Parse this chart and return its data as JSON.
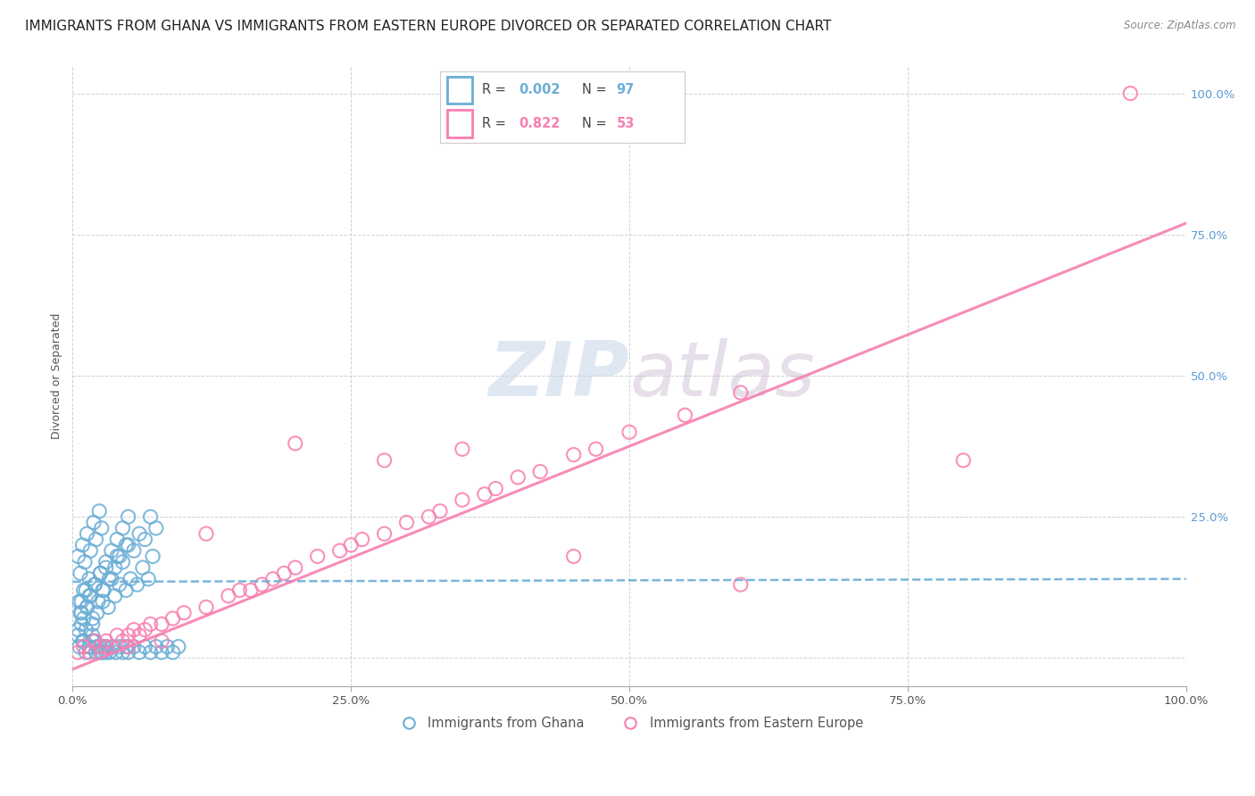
{
  "title": "IMMIGRANTS FROM GHANA VS IMMIGRANTS FROM EASTERN EUROPE DIVORCED OR SEPARATED CORRELATION CHART",
  "source": "Source: ZipAtlas.com",
  "ylabel": "Divorced or Separated",
  "legend_ghana_label": "Immigrants from Ghana",
  "legend_eastern_label": "Immigrants from Eastern Europe",
  "ghana_color": "#6baed6",
  "eastern_color": "#f87eb0",
  "watermark_zip": "ZIP",
  "watermark_atlas": "atlas",
  "xlim": [
    0.0,
    1.0
  ],
  "ylim": [
    -0.05,
    1.05
  ],
  "yticks": [
    0.0,
    0.25,
    0.5,
    0.75,
    1.0
  ],
  "xticks": [
    0.0,
    0.25,
    0.5,
    0.75,
    1.0
  ],
  "ghana_R": "0.002",
  "ghana_N": "97",
  "eastern_R": "0.822",
  "eastern_N": "53",
  "ghana_line_y0": 0.135,
  "ghana_line_y1": 0.14,
  "eastern_line_x0": 0.0,
  "eastern_line_y0": -0.02,
  "eastern_line_x1": 1.0,
  "eastern_line_y1": 0.77,
  "ghana_scatter_x": [
    0.005,
    0.007,
    0.008,
    0.01,
    0.012,
    0.013,
    0.015,
    0.016,
    0.018,
    0.02,
    0.022,
    0.025,
    0.027,
    0.028,
    0.03,
    0.032,
    0.035,
    0.038,
    0.04,
    0.042,
    0.045,
    0.048,
    0.05,
    0.052,
    0.055,
    0.058,
    0.06,
    0.063,
    0.065,
    0.068,
    0.07,
    0.072,
    0.075,
    0.005,
    0.008,
    0.01,
    0.012,
    0.015,
    0.018,
    0.02,
    0.022,
    0.025,
    0.028,
    0.03,
    0.005,
    0.007,
    0.009,
    0.011,
    0.013,
    0.016,
    0.019,
    0.021,
    0.024,
    0.026,
    0.006,
    0.008,
    0.01,
    0.013,
    0.015,
    0.018,
    0.02,
    0.023,
    0.025,
    0.027,
    0.03,
    0.033,
    0.035,
    0.038,
    0.04,
    0.042,
    0.045,
    0.048,
    0.05,
    0.006,
    0.009,
    0.012,
    0.015,
    0.018,
    0.021,
    0.024,
    0.027,
    0.03,
    0.033,
    0.036,
    0.039,
    0.042,
    0.045,
    0.048,
    0.05,
    0.055,
    0.06,
    0.065,
    0.07,
    0.075,
    0.08,
    0.085,
    0.09,
    0.095
  ],
  "ghana_scatter_y": [
    0.05,
    0.08,
    0.1,
    0.07,
    0.12,
    0.09,
    0.14,
    0.11,
    0.06,
    0.13,
    0.08,
    0.15,
    0.1,
    0.12,
    0.16,
    0.09,
    0.14,
    0.11,
    0.18,
    0.13,
    0.17,
    0.12,
    0.2,
    0.14,
    0.19,
    0.13,
    0.22,
    0.16,
    0.21,
    0.14,
    0.25,
    0.18,
    0.23,
    0.04,
    0.06,
    0.03,
    0.05,
    0.02,
    0.04,
    0.03,
    0.02,
    0.01,
    0.02,
    0.01,
    0.18,
    0.15,
    0.2,
    0.17,
    0.22,
    0.19,
    0.24,
    0.21,
    0.26,
    0.23,
    0.1,
    0.08,
    0.12,
    0.09,
    0.11,
    0.07,
    0.13,
    0.1,
    0.15,
    0.12,
    0.17,
    0.14,
    0.19,
    0.16,
    0.21,
    0.18,
    0.23,
    0.2,
    0.25,
    0.02,
    0.03,
    0.01,
    0.02,
    0.03,
    0.01,
    0.02,
    0.01,
    0.02,
    0.01,
    0.02,
    0.01,
    0.02,
    0.01,
    0.02,
    0.01,
    0.02,
    0.01,
    0.02,
    0.01,
    0.02,
    0.01,
    0.02,
    0.01,
    0.02
  ],
  "eastern_scatter_x": [
    0.005,
    0.01,
    0.015,
    0.02,
    0.025,
    0.03,
    0.04,
    0.045,
    0.05,
    0.055,
    0.06,
    0.065,
    0.07,
    0.08,
    0.09,
    0.1,
    0.12,
    0.14,
    0.15,
    0.16,
    0.17,
    0.18,
    0.19,
    0.2,
    0.22,
    0.24,
    0.25,
    0.26,
    0.28,
    0.3,
    0.32,
    0.33,
    0.35,
    0.37,
    0.38,
    0.4,
    0.42,
    0.45,
    0.47,
    0.5,
    0.55,
    0.6,
    0.95,
    0.03,
    0.05,
    0.08,
    0.12,
    0.2,
    0.28,
    0.35,
    0.45,
    0.6,
    0.8
  ],
  "eastern_scatter_y": [
    0.01,
    0.02,
    0.01,
    0.03,
    0.02,
    0.03,
    0.04,
    0.03,
    0.04,
    0.05,
    0.04,
    0.05,
    0.06,
    0.06,
    0.07,
    0.08,
    0.09,
    0.11,
    0.12,
    0.12,
    0.13,
    0.14,
    0.15,
    0.16,
    0.18,
    0.19,
    0.2,
    0.21,
    0.22,
    0.24,
    0.25,
    0.26,
    0.28,
    0.29,
    0.3,
    0.32,
    0.33,
    0.36,
    0.37,
    0.4,
    0.43,
    0.47,
    1.0,
    0.02,
    0.02,
    0.03,
    0.22,
    0.38,
    0.35,
    0.37,
    0.18,
    0.13,
    0.35
  ],
  "title_fontsize": 11,
  "axis_label_fontsize": 9,
  "tick_fontsize": 9.5,
  "legend_fontsize": 10.5
}
